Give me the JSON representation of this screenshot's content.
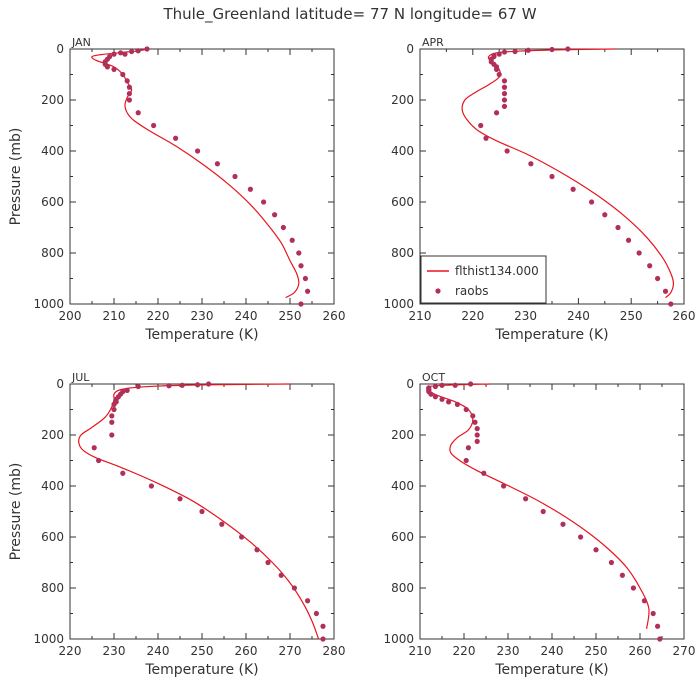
{
  "title": "Thule_Greenland  latitude= 77 N longitude= 67 W",
  "colors": {
    "model": "#e8141c",
    "obs": "#b0305a",
    "axis": "#333333"
  },
  "legend": {
    "model_label": "flthist134.000",
    "obs_label": "raobs"
  },
  "chart_data": [
    {
      "type": "line",
      "panel": "JAN",
      "xlabel": "Temperature (K)",
      "ylabel": "Pressure (mb)",
      "xlim": [
        200,
        260
      ],
      "ylim": [
        1000,
        0
      ],
      "xticks": [
        200,
        210,
        220,
        230,
        240,
        250,
        260
      ],
      "yticks": [
        0,
        200,
        400,
        600,
        800,
        1000
      ],
      "model": {
        "T": [
          218,
          215,
          211,
          207,
          205,
          206,
          210,
          212,
          213,
          214,
          213,
          212.5,
          213,
          214.5,
          218,
          224,
          230,
          236,
          241,
          245,
          248,
          250,
          251.5,
          252,
          251,
          249
        ],
        "P": [
          0,
          8,
          15,
          22,
          30,
          45,
          70,
          100,
          130,
          160,
          190,
          220,
          250,
          280,
          320,
          380,
          450,
          530,
          610,
          690,
          760,
          830,
          880,
          920,
          955,
          975
        ]
      },
      "obs": {
        "T": [
          217.5,
          215.5,
          214,
          212.5,
          211.5,
          210,
          209,
          208.5,
          208,
          208,
          208.5,
          210,
          212,
          213,
          213.5,
          213.5,
          213.5,
          215.5,
          219,
          224,
          229,
          233.5,
          237.5,
          241,
          244,
          246.5,
          248.5,
          250.5,
          252,
          252.5,
          253.5,
          254,
          252.5
        ],
        "P": [
          0,
          7,
          10,
          20,
          15,
          20,
          30,
          40,
          50,
          60,
          70,
          80,
          100,
          125,
          150,
          175,
          200,
          250,
          300,
          350,
          400,
          450,
          500,
          550,
          600,
          650,
          700,
          750,
          800,
          850,
          900,
          950,
          1000
        ]
      }
    },
    {
      "type": "line",
      "panel": "APR",
      "xlabel": "Temperature (K)",
      "ylabel": "",
      "xlim": [
        210,
        260
      ],
      "ylim": [
        1000,
        0
      ],
      "xticks": [
        210,
        220,
        230,
        240,
        250,
        260
      ],
      "yticks": [
        0,
        200,
        400,
        600,
        800,
        1000
      ],
      "model": {
        "T": [
          247,
          237,
          229,
          224.5,
          223,
          223.5,
          225,
          225,
          223,
          220.5,
          218.5,
          218,
          219,
          221,
          224.5,
          231,
          238,
          244,
          249,
          253,
          256,
          257.5,
          258,
          257.5,
          256.5
        ],
        "P": [
          0,
          3,
          8,
          15,
          30,
          50,
          80,
          110,
          140,
          170,
          200,
          240,
          280,
          320,
          360,
          420,
          500,
          580,
          660,
          740,
          820,
          880,
          920,
          955,
          975
        ]
      },
      "obs": {
        "T": [
          238,
          235,
          230.5,
          228,
          226,
          225,
          224,
          224,
          223.5,
          223.5,
          224,
          224.5,
          224.5,
          225,
          226,
          226,
          226,
          226,
          226,
          224.5,
          221.5,
          222.5,
          226.5,
          231,
          235,
          239,
          242.5,
          245,
          247.5,
          249.5,
          251.5,
          253.5,
          255,
          256.5,
          257.5
        ],
        "P": [
          0,
          2,
          5,
          10,
          12,
          20,
          25,
          30,
          40,
          50,
          60,
          70,
          80,
          100,
          125,
          150,
          175,
          200,
          225,
          250,
          300,
          350,
          400,
          450,
          500,
          550,
          600,
          650,
          700,
          750,
          800,
          850,
          900,
          950,
          1000
        ]
      }
    },
    {
      "type": "line",
      "panel": "JUL",
      "xlabel": "Temperature (K)",
      "ylabel": "Pressure (mb)",
      "xlim": [
        220,
        280
      ],
      "ylim": [
        1000,
        0
      ],
      "xticks": [
        220,
        230,
        240,
        250,
        260,
        270,
        280
      ],
      "yticks": [
        0,
        200,
        400,
        600,
        800,
        1000
      ],
      "model": {
        "T": [
          270,
          252,
          240,
          234,
          231,
          230,
          230,
          229.5,
          228,
          225,
          222.5,
          222,
          223,
          226,
          232,
          240,
          248,
          255,
          261,
          266,
          270,
          273,
          275,
          276.5
        ],
        "P": [
          0,
          3,
          8,
          15,
          25,
          40,
          60,
          90,
          130,
          170,
          200,
          230,
          260,
          290,
          330,
          390,
          460,
          540,
          620,
          700,
          780,
          860,
          930,
          1000
        ]
      },
      "obs": {
        "T": [
          251.5,
          249,
          245.5,
          242.5,
          235.5,
          233,
          232,
          231.5,
          231,
          230.5,
          230.5,
          230,
          230,
          229.5,
          229.5,
          229.5,
          225.5,
          226.5,
          232,
          238.5,
          245,
          250,
          254.5,
          259,
          262.5,
          265,
          268,
          271,
          274,
          276,
          277.5,
          277.5
        ],
        "P": [
          0,
          3,
          5,
          7,
          10,
          25,
          30,
          40,
          50,
          60,
          70,
          80,
          100,
          125,
          150,
          200,
          250,
          300,
          350,
          400,
          450,
          500,
          550,
          600,
          650,
          700,
          750,
          800,
          850,
          900,
          950,
          1000
        ]
      }
    },
    {
      "type": "line",
      "panel": "OCT",
      "xlabel": "Temperature (K)",
      "ylabel": "",
      "xlim": [
        210,
        270
      ],
      "ylim": [
        1000,
        0
      ],
      "xticks": [
        210,
        220,
        230,
        240,
        250,
        260,
        270
      ],
      "yticks": [
        0,
        200,
        400,
        600,
        800,
        1000
      ],
      "model": {
        "T": [
          226,
          217,
          212,
          212,
          214,
          218,
          221,
          222,
          221,
          218.5,
          217,
          217,
          219,
          223,
          229,
          236,
          242,
          248,
          253,
          257,
          260,
          262,
          261.5
        ],
        "P": [
          0,
          4,
          10,
          25,
          45,
          70,
          100,
          140,
          180,
          210,
          240,
          270,
          300,
          340,
          390,
          450,
          510,
          580,
          650,
          720,
          800,
          880,
          960
        ]
      },
      "obs": {
        "T": [
          221.5,
          218,
          215,
          213.5,
          212,
          212,
          212,
          212,
          212.5,
          213.5,
          215,
          216.5,
          218.5,
          220.5,
          222,
          222.5,
          223,
          223,
          223,
          221,
          220.5,
          224.5,
          229,
          234,
          238,
          242.5,
          246.5,
          250,
          253.5,
          256,
          258.5,
          261,
          263,
          264,
          264.5
        ],
        "P": [
          0,
          5,
          5,
          10,
          15,
          20,
          25,
          30,
          40,
          50,
          60,
          70,
          80,
          100,
          125,
          150,
          175,
          200,
          225,
          250,
          300,
          350,
          400,
          450,
          500,
          550,
          600,
          650,
          700,
          750,
          800,
          850,
          900,
          950,
          1000
        ]
      }
    }
  ]
}
